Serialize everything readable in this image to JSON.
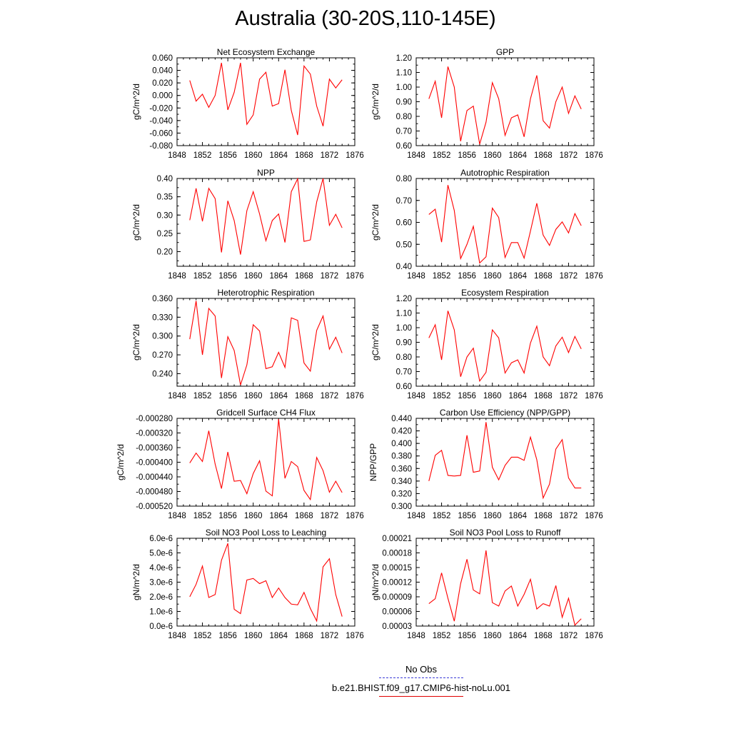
{
  "figure": {
    "title": "Australia (30-20S,110-145E)",
    "series_color": "#ff0000",
    "obs_color": "#3b3bd6",
    "legend": [
      {
        "label": "No Obs",
        "style": "dashed",
        "color": "#3b3bd6"
      },
      {
        "label": "b.e21.BHIST.f09_g17.CMIP6-hist-noLu.001",
        "style": "solid",
        "color": "#ff0000"
      }
    ]
  },
  "chart_data": [
    {
      "type": "line",
      "title": "Net Ecosystem Exchange",
      "ylabel": "gC/m^2/d",
      "xlim": [
        1848,
        1876
      ],
      "xticks": [
        "1848",
        "1852",
        "1856",
        "1860",
        "1864",
        "1868",
        "1872",
        "1876"
      ],
      "ylim": [
        -0.08,
        0.06
      ],
      "yticks": [
        "-0.080",
        "-0.060",
        "-0.040",
        "-0.020",
        "0.000",
        "0.020",
        "0.040",
        "0.060"
      ],
      "x": [
        1850,
        1851,
        1852,
        1853,
        1854,
        1855,
        1856,
        1857,
        1858,
        1859,
        1860,
        1861,
        1862,
        1863,
        1864,
        1865,
        1866,
        1867,
        1868,
        1869,
        1870,
        1871,
        1872,
        1873,
        1874
      ],
      "values": [
        0.024,
        -0.009,
        0.002,
        -0.019,
        0.0,
        0.052,
        -0.023,
        0.005,
        0.052,
        -0.046,
        -0.031,
        0.026,
        0.037,
        -0.017,
        -0.013,
        0.041,
        -0.024,
        -0.063,
        0.047,
        0.034,
        -0.017,
        -0.049,
        0.026,
        0.012,
        0.025
      ]
    },
    {
      "type": "line",
      "title": "GPP",
      "ylabel": "gC/m^2/d",
      "xlim": [
        1848,
        1876
      ],
      "xticks": [
        "1848",
        "1852",
        "1856",
        "1860",
        "1864",
        "1868",
        "1872",
        "1876"
      ],
      "ylim": [
        0.6,
        1.2
      ],
      "yticks": [
        "0.60",
        "0.70",
        "0.80",
        "0.90",
        "1.00",
        "1.10",
        "1.20"
      ],
      "x": [
        1850,
        1851,
        1852,
        1853,
        1854,
        1855,
        1856,
        1857,
        1858,
        1859,
        1860,
        1861,
        1862,
        1863,
        1864,
        1865,
        1866,
        1867,
        1868,
        1869,
        1870,
        1871,
        1872,
        1873,
        1874
      ],
      "values": [
        0.92,
        1.04,
        0.79,
        1.14,
        1.0,
        0.63,
        0.84,
        0.87,
        0.61,
        0.76,
        1.03,
        0.92,
        0.67,
        0.79,
        0.81,
        0.66,
        0.92,
        1.08,
        0.77,
        0.72,
        0.9,
        1.0,
        0.82,
        0.94,
        0.85
      ]
    },
    {
      "type": "line",
      "title": "NPP",
      "ylabel": "gC/m^2/d",
      "xlim": [
        1848,
        1876
      ],
      "xticks": [
        "1848",
        "1852",
        "1856",
        "1860",
        "1864",
        "1868",
        "1872",
        "1876"
      ],
      "ylim": [
        0.16,
        0.4
      ],
      "yticks": [
        "0.20",
        "0.25",
        "0.30",
        "0.35",
        "0.40"
      ],
      "x": [
        1850,
        1851,
        1852,
        1853,
        1854,
        1855,
        1856,
        1857,
        1858,
        1859,
        1860,
        1861,
        1862,
        1863,
        1864,
        1865,
        1866,
        1867,
        1868,
        1869,
        1870,
        1871,
        1872,
        1873,
        1874
      ],
      "values": [
        0.286,
        0.373,
        0.283,
        0.373,
        0.345,
        0.198,
        0.339,
        0.285,
        0.192,
        0.312,
        0.364,
        0.303,
        0.23,
        0.285,
        0.303,
        0.225,
        0.364,
        0.399,
        0.228,
        0.232,
        0.336,
        0.4,
        0.272,
        0.302,
        0.265
      ]
    },
    {
      "type": "line",
      "title": "Autotrophic Respiration",
      "ylabel": "gC/m^2/d",
      "xlim": [
        1848,
        1876
      ],
      "xticks": [
        "1848",
        "1852",
        "1856",
        "1860",
        "1864",
        "1868",
        "1872",
        "1876"
      ],
      "ylim": [
        0.4,
        0.8
      ],
      "yticks": [
        "0.40",
        "0.50",
        "0.60",
        "0.70",
        "0.80"
      ],
      "x": [
        1850,
        1851,
        1852,
        1853,
        1854,
        1855,
        1856,
        1857,
        1858,
        1859,
        1860,
        1861,
        1862,
        1863,
        1864,
        1865,
        1866,
        1867,
        1868,
        1869,
        1870,
        1871,
        1872,
        1873,
        1874
      ],
      "values": [
        0.636,
        0.66,
        0.51,
        0.77,
        0.654,
        0.435,
        0.5,
        0.582,
        0.415,
        0.443,
        0.665,
        0.622,
        0.44,
        0.508,
        0.508,
        0.437,
        0.56,
        0.687,
        0.542,
        0.495,
        0.568,
        0.602,
        0.552,
        0.64,
        0.585
      ]
    },
    {
      "type": "line",
      "title": "Heterotrophic Respiration",
      "ylabel": "gC/m^2/d",
      "xlim": [
        1848,
        1876
      ],
      "xticks": [
        "1848",
        "1852",
        "1856",
        "1860",
        "1864",
        "1868",
        "1872",
        "1876"
      ],
      "ylim": [
        0.22,
        0.36
      ],
      "yticks": [
        "0.240",
        "0.270",
        "0.300",
        "0.330",
        "0.360"
      ],
      "x": [
        1850,
        1851,
        1852,
        1853,
        1854,
        1855,
        1856,
        1857,
        1858,
        1859,
        1860,
        1861,
        1862,
        1863,
        1864,
        1865,
        1866,
        1867,
        1868,
        1869,
        1870,
        1871,
        1872,
        1873,
        1874
      ],
      "values": [
        0.295,
        0.356,
        0.27,
        0.344,
        0.332,
        0.233,
        0.299,
        0.277,
        0.222,
        0.254,
        0.318,
        0.308,
        0.248,
        0.251,
        0.274,
        0.25,
        0.329,
        0.325,
        0.257,
        0.244,
        0.309,
        0.332,
        0.279,
        0.298,
        0.273
      ]
    },
    {
      "type": "line",
      "title": "Ecosystem Respiration",
      "ylabel": "gC/m^2/d",
      "xlim": [
        1848,
        1876
      ],
      "xticks": [
        "1848",
        "1852",
        "1856",
        "1860",
        "1864",
        "1868",
        "1872",
        "1876"
      ],
      "ylim": [
        0.6,
        1.2
      ],
      "yticks": [
        "0.60",
        "0.70",
        "0.80",
        "0.90",
        "1.00",
        "1.10",
        "1.20"
      ],
      "x": [
        1850,
        1851,
        1852,
        1853,
        1854,
        1855,
        1856,
        1857,
        1858,
        1859,
        1860,
        1861,
        1862,
        1863,
        1864,
        1865,
        1866,
        1867,
        1868,
        1869,
        1870,
        1871,
        1872,
        1873,
        1874
      ],
      "values": [
        0.93,
        1.02,
        0.78,
        1.115,
        0.985,
        0.665,
        0.8,
        0.86,
        0.635,
        0.695,
        0.985,
        0.93,
        0.69,
        0.76,
        0.78,
        0.69,
        0.895,
        1.01,
        0.8,
        0.74,
        0.875,
        0.935,
        0.83,
        0.94,
        0.855
      ]
    },
    {
      "type": "line",
      "title": "Gridcell Surface CH4 Flux",
      "ylabel": "gC/m^2/d",
      "xlim": [
        1848,
        1876
      ],
      "xticks": [
        "1848",
        "1852",
        "1856",
        "1860",
        "1864",
        "1868",
        "1872",
        "1876"
      ],
      "ylim": [
        -0.00052,
        -0.00028
      ],
      "yticks": [
        "-0.000520",
        "-0.000480",
        "-0.000440",
        "-0.000400",
        "-0.000360",
        "-0.000320",
        "-0.000280"
      ],
      "x": [
        1850,
        1851,
        1852,
        1853,
        1854,
        1855,
        1856,
        1857,
        1858,
        1859,
        1860,
        1861,
        1862,
        1863,
        1864,
        1865,
        1866,
        1867,
        1868,
        1869,
        1870,
        1871,
        1872,
        1873,
        1874
      ],
      "values": [
        -0.000402,
        -0.000375,
        -0.000398,
        -0.000314,
        -0.000405,
        -0.000472,
        -0.000372,
        -0.000452,
        -0.00045,
        -0.000486,
        -0.000431,
        -0.000396,
        -0.000479,
        -0.000492,
        -0.000282,
        -0.000444,
        -0.000398,
        -0.000412,
        -0.000477,
        -0.000502,
        -0.000387,
        -0.000423,
        -0.000482,
        -0.000452,
        -0.000483
      ]
    },
    {
      "type": "line",
      "title": "Carbon Use Efficiency (NPP/GPP)",
      "ylabel": "NPP/GPP",
      "xlim": [
        1848,
        1876
      ],
      "xticks": [
        "1848",
        "1852",
        "1856",
        "1860",
        "1864",
        "1868",
        "1872",
        "1876"
      ],
      "ylim": [
        0.3,
        0.44
      ],
      "yticks": [
        "0.300",
        "0.320",
        "0.340",
        "0.360",
        "0.380",
        "0.400",
        "0.420",
        "0.440"
      ],
      "x": [
        1850,
        1851,
        1852,
        1853,
        1854,
        1855,
        1856,
        1857,
        1858,
        1859,
        1860,
        1861,
        1862,
        1863,
        1864,
        1865,
        1866,
        1867,
        1868,
        1869,
        1870,
        1871,
        1872,
        1873,
        1874
      ],
      "values": [
        0.34,
        0.381,
        0.389,
        0.349,
        0.348,
        0.349,
        0.413,
        0.354,
        0.356,
        0.434,
        0.362,
        0.342,
        0.365,
        0.378,
        0.378,
        0.373,
        0.41,
        0.374,
        0.313,
        0.335,
        0.391,
        0.406,
        0.345,
        0.329,
        0.329
      ]
    },
    {
      "type": "line",
      "title": "Soil NO3 Pool Loss to Leaching",
      "ylabel": "gN/m^2/d",
      "xlim": [
        1848,
        1876
      ],
      "xticks": [
        "1848",
        "1852",
        "1856",
        "1860",
        "1864",
        "1868",
        "1872",
        "1876"
      ],
      "ylim": [
        0,
        6e-06
      ],
      "yticks": [
        "0.0e-6",
        "1.0e-6",
        "2.0e-6",
        "3.0e-6",
        "4.0e-6",
        "5.0e-6",
        "6.0e-6"
      ],
      "x": [
        1850,
        1851,
        1852,
        1853,
        1854,
        1855,
        1856,
        1857,
        1858,
        1859,
        1860,
        1861,
        1862,
        1863,
        1864,
        1865,
        1866,
        1867,
        1868,
        1869,
        1870,
        1871,
        1872,
        1873,
        1874
      ],
      "values": [
        2e-06,
        2.85e-06,
        4.1e-06,
        1.95e-06,
        2.15e-06,
        4.5e-06,
        5.65e-06,
        1.15e-06,
        8.5e-07,
        3.15e-06,
        3.25e-06,
        2.9e-06,
        3.1e-06,
        1.95e-06,
        2.6e-06,
        1.95e-06,
        1.5e-06,
        1.45e-06,
        2.3e-06,
        1.2e-06,
        3.5e-07,
        4.05e-06,
        4.6e-06,
        2.15e-06,
        6.5e-07
      ]
    },
    {
      "type": "line",
      "title": "Soil NO3 Pool Loss to Runoff",
      "ylabel": "gN/m^2/d",
      "xlim": [
        1848,
        1876
      ],
      "xticks": [
        "1848",
        "1852",
        "1856",
        "1860",
        "1864",
        "1868",
        "1872",
        "1876"
      ],
      "ylim": [
        3e-05,
        0.00021
      ],
      "yticks": [
        "0.00003",
        "0.00006",
        "0.00009",
        "0.00012",
        "0.00015",
        "0.00018",
        "0.00021"
      ],
      "x": [
        1850,
        1851,
        1852,
        1853,
        1854,
        1855,
        1856,
        1857,
        1858,
        1859,
        1860,
        1861,
        1862,
        1863,
        1864,
        1865,
        1866,
        1867,
        1868,
        1869,
        1870,
        1871,
        1872,
        1873,
        1874
      ],
      "values": [
        7.6e-05,
        8.6e-05,
        0.000139,
        8.7e-05,
        4e-05,
        0.000117,
        0.000167,
        0.000104,
        9.6e-05,
        0.000185,
        7.8e-05,
        7.1e-05,
        0.000102,
        0.000112,
        7.1e-05,
        9.5e-05,
        0.000126,
        6.5e-05,
        7.6e-05,
        7.1e-05,
        0.000113,
        4.8e-05,
        8.7e-05,
        3.2e-05,
        4.5e-05
      ]
    }
  ]
}
